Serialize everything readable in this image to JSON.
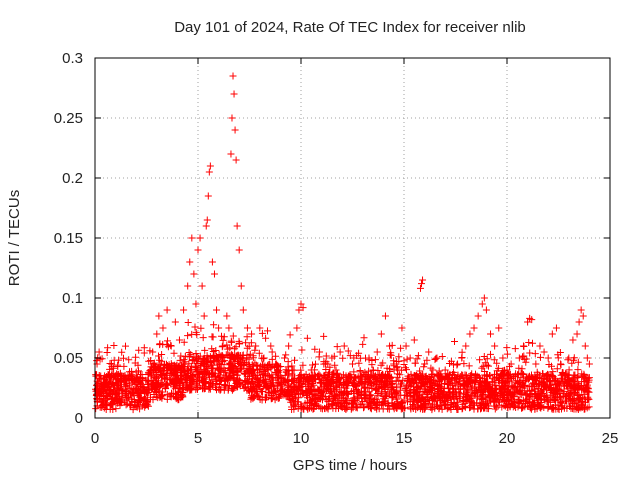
{
  "chart_data": {
    "type": "scatter",
    "title": "Day 101 of 2024, Rate Of TEC Index for receiver nlib",
    "xlabel": "GPS time / hours",
    "ylabel": "ROTI / TECUs",
    "xlim": [
      0,
      25
    ],
    "ylim": [
      0,
      0.3
    ],
    "x_ticks": [
      0,
      5,
      10,
      15,
      20,
      25
    ],
    "y_ticks": [
      0,
      0.05,
      0.1,
      0.15,
      0.2,
      0.25,
      0.3
    ],
    "x_tick_labels": [
      "0",
      "5",
      "10",
      "15",
      "20",
      "25"
    ],
    "y_tick_labels": [
      "0",
      "0.05",
      "0.1",
      "0.15",
      "0.2",
      "0.25",
      "0.3"
    ],
    "grid": true,
    "marker": "+",
    "color": "#ff0000",
    "points": [
      [
        0.1,
        0.024
      ],
      [
        0.1,
        0.045
      ],
      [
        0.2,
        0.055
      ],
      [
        0.3,
        0.033
      ],
      [
        0.5,
        0.015
      ],
      [
        0.6,
        0.028
      ],
      [
        0.8,
        0.045
      ],
      [
        0.9,
        0.022
      ],
      [
        1.0,
        0.035
      ],
      [
        1.2,
        0.018
      ],
      [
        1.4,
        0.03
      ],
      [
        1.6,
        0.025
      ],
      [
        1.8,
        0.02
      ],
      [
        2.0,
        0.028
      ],
      [
        2.2,
        0.033
      ],
      [
        2.4,
        0.022
      ],
      [
        2.6,
        0.038
      ],
      [
        2.8,
        0.055
      ],
      [
        3.0,
        0.07
      ],
      [
        3.1,
        0.085
      ],
      [
        3.3,
        0.075
      ],
      [
        3.5,
        0.09
      ],
      [
        3.7,
        0.06
      ],
      [
        3.9,
        0.08
      ],
      [
        4.1,
        0.065
      ],
      [
        4.3,
        0.09
      ],
      [
        4.5,
        0.11
      ],
      [
        4.6,
        0.13
      ],
      [
        4.7,
        0.15
      ],
      [
        4.8,
        0.12
      ],
      [
        4.9,
        0.095
      ],
      [
        5.0,
        0.14
      ],
      [
        5.1,
        0.15
      ],
      [
        5.2,
        0.11
      ],
      [
        5.3,
        0.085
      ],
      [
        5.4,
        0.16
      ],
      [
        5.45,
        0.165
      ],
      [
        5.5,
        0.185
      ],
      [
        5.55,
        0.205
      ],
      [
        5.6,
        0.21
      ],
      [
        5.7,
        0.13
      ],
      [
        5.8,
        0.12
      ],
      [
        5.9,
        0.09
      ],
      [
        6.0,
        0.075
      ],
      [
        6.2,
        0.06
      ],
      [
        6.4,
        0.085
      ],
      [
        6.5,
        0.075
      ],
      [
        6.6,
        0.22
      ],
      [
        6.65,
        0.25
      ],
      [
        6.7,
        0.285
      ],
      [
        6.75,
        0.27
      ],
      [
        6.8,
        0.24
      ],
      [
        6.85,
        0.215
      ],
      [
        6.9,
        0.16
      ],
      [
        7.0,
        0.14
      ],
      [
        7.1,
        0.11
      ],
      [
        7.2,
        0.09
      ],
      [
        7.4,
        0.075
      ],
      [
        7.6,
        0.07
      ],
      [
        7.8,
        0.06
      ],
      [
        8.0,
        0.075
      ],
      [
        8.2,
        0.05
      ],
      [
        8.4,
        0.04
      ],
      [
        8.6,
        0.055
      ],
      [
        8.8,
        0.045
      ],
      [
        9.0,
        0.035
      ],
      [
        9.2,
        0.05
      ],
      [
        9.4,
        0.06
      ],
      [
        9.6,
        0.04
      ],
      [
        9.8,
        0.075
      ],
      [
        9.9,
        0.09
      ],
      [
        10.0,
        0.095
      ],
      [
        10.1,
        0.092
      ],
      [
        10.3,
        0.03
      ],
      [
        10.5,
        0.04
      ],
      [
        10.7,
        0.035
      ],
      [
        10.9,
        0.055
      ],
      [
        11.1,
        0.068
      ],
      [
        11.3,
        0.045
      ],
      [
        11.5,
        0.05
      ],
      [
        11.7,
        0.04
      ],
      [
        11.9,
        0.055
      ],
      [
        12.1,
        0.06
      ],
      [
        12.3,
        0.035
      ],
      [
        12.5,
        0.045
      ],
      [
        12.7,
        0.052
      ],
      [
        12.9,
        0.03
      ],
      [
        13.1,
        0.038
      ],
      [
        13.3,
        0.05
      ],
      [
        13.5,
        0.04
      ],
      [
        13.7,
        0.055
      ],
      [
        13.9,
        0.07
      ],
      [
        14.1,
        0.085
      ],
      [
        14.3,
        0.06
      ],
      [
        14.5,
        0.045
      ],
      [
        14.7,
        0.04
      ],
      [
        14.9,
        0.075
      ],
      [
        15.1,
        0.06
      ],
      [
        15.3,
        0.05
      ],
      [
        15.5,
        0.065
      ],
      [
        15.7,
        0.052
      ],
      [
        15.8,
        0.108
      ],
      [
        15.85,
        0.112
      ],
      [
        15.9,
        0.115
      ],
      [
        16.0,
        0.045
      ],
      [
        16.2,
        0.055
      ],
      [
        16.4,
        0.04
      ],
      [
        16.6,
        0.05
      ],
      [
        16.8,
        0.035
      ],
      [
        17.0,
        0.04
      ],
      [
        17.2,
        0.03
      ],
      [
        17.4,
        0.038
      ],
      [
        17.6,
        0.045
      ],
      [
        17.8,
        0.05
      ],
      [
        18.0,
        0.06
      ],
      [
        18.2,
        0.07
      ],
      [
        18.4,
        0.075
      ],
      [
        18.6,
        0.085
      ],
      [
        18.8,
        0.095
      ],
      [
        18.9,
        0.1
      ],
      [
        19.0,
        0.09
      ],
      [
        19.2,
        0.07
      ],
      [
        19.4,
        0.06
      ],
      [
        19.6,
        0.075
      ],
      [
        19.8,
        0.05
      ],
      [
        20.0,
        0.04
      ],
      [
        20.2,
        0.045
      ],
      [
        20.4,
        0.035
      ],
      [
        20.6,
        0.05
      ],
      [
        20.8,
        0.06
      ],
      [
        21.0,
        0.08
      ],
      [
        21.1,
        0.083
      ],
      [
        21.2,
        0.082
      ],
      [
        21.4,
        0.045
      ],
      [
        21.6,
        0.06
      ],
      [
        21.8,
        0.055
      ],
      [
        22.0,
        0.05
      ],
      [
        22.2,
        0.07
      ],
      [
        22.4,
        0.075
      ],
      [
        22.6,
        0.045
      ],
      [
        22.8,
        0.035
      ],
      [
        23.0,
        0.05
      ],
      [
        23.2,
        0.065
      ],
      [
        23.4,
        0.07
      ],
      [
        23.5,
        0.08
      ],
      [
        23.6,
        0.09
      ],
      [
        23.7,
        0.085
      ],
      [
        23.8,
        0.06
      ],
      [
        23.9,
        0.05
      ],
      [
        24.0,
        0.045
      ]
    ]
  }
}
